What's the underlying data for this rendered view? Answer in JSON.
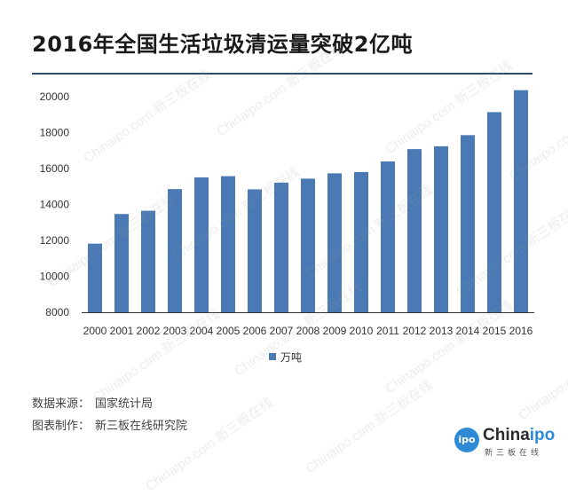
{
  "title": "2016年全国生活垃圾清运量突破2亿吨",
  "footer": {
    "source_key": "数据来源：",
    "source_value": "国家统计局",
    "maker_key": "图表制作：",
    "maker_value": "新三板在线研究院"
  },
  "logo": {
    "badge": "ipo",
    "name_prefix": "China",
    "name_accent": "ipo",
    "sub": "新三板在线"
  },
  "watermark": {
    "text": "Chinaipo.com 新三板在线"
  },
  "colors": {
    "bar": "#4a7ab5",
    "axis": "#333333",
    "title_rule": "#2f4a6e"
  },
  "chart_data": {
    "type": "bar",
    "title": "2016年全国生活垃圾清运量突破2亿吨",
    "categories": [
      "2000",
      "2001",
      "2002",
      "2003",
      "2004",
      "2005",
      "2006",
      "2007",
      "2008",
      "2009",
      "2010",
      "2011",
      "2012",
      "2013",
      "2014",
      "2015",
      "2016"
    ],
    "series": [
      {
        "name": "万吨",
        "values": [
          11819,
          13470,
          13650,
          14857,
          15509,
          15577,
          14841,
          15215,
          15438,
          15734,
          15805,
          16395,
          17081,
          17239,
          17860,
          19142,
          20362
        ]
      }
    ],
    "ylim": [
      8000,
      20000
    ],
    "yticks": [
      8000,
      10000,
      12000,
      14000,
      16000,
      18000,
      20000
    ],
    "xlabel": "",
    "ylabel": "",
    "legend": "bottom-center",
    "grid": false
  }
}
